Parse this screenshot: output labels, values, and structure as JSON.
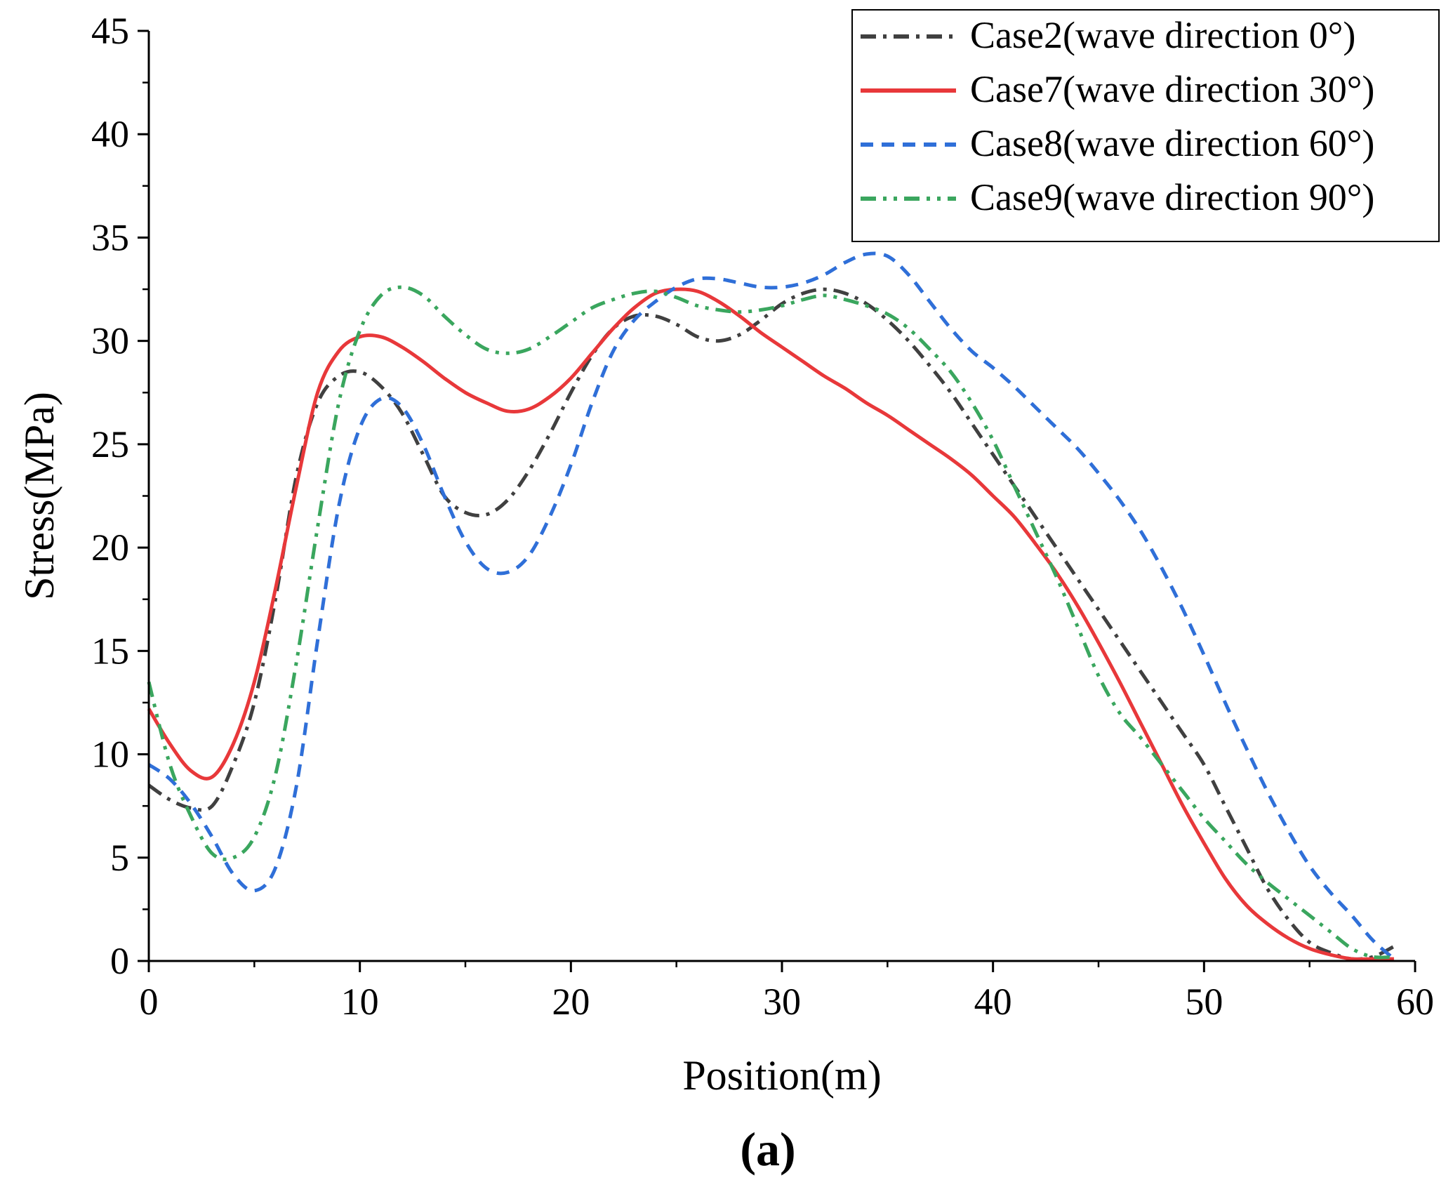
{
  "chart_data": {
    "type": "line",
    "title": "",
    "xlabel": "Position(m)",
    "ylabel": "Stress(MPa)",
    "panel_label": "(a)",
    "xlim": [
      0,
      60
    ],
    "ylim": [
      0,
      45
    ],
    "xticks": [
      0,
      10,
      20,
      30,
      40,
      50,
      60
    ],
    "yticks": [
      0,
      5,
      10,
      15,
      20,
      25,
      30,
      35,
      40,
      45
    ],
    "grid": false,
    "legend_position": "top-right",
    "series": [
      {
        "name": "Case2(wave direction 0°)",
        "color": "#404040",
        "dash": "dashdot",
        "x": [
          0,
          1,
          2,
          3,
          4,
          5,
          6,
          7,
          8,
          9,
          10,
          11,
          12,
          13,
          14,
          15,
          16,
          17,
          18,
          19,
          20,
          21,
          22,
          23,
          24,
          25,
          26,
          27,
          28,
          29,
          30,
          31,
          32,
          33,
          34,
          35,
          36,
          37,
          38,
          39,
          40,
          41,
          42,
          43,
          44,
          45,
          46,
          47,
          48,
          49,
          50,
          51,
          52,
          53,
          54,
          55,
          56,
          57,
          58,
          59
        ],
        "y": [
          8.5,
          7.8,
          7.4,
          7.5,
          9.5,
          12.5,
          17.5,
          23.5,
          27.0,
          28.3,
          28.5,
          27.8,
          26.5,
          24.5,
          22.5,
          21.7,
          21.6,
          22.3,
          23.7,
          25.5,
          27.5,
          29.3,
          30.6,
          31.2,
          31.2,
          30.8,
          30.2,
          30.0,
          30.3,
          31.0,
          31.8,
          32.3,
          32.5,
          32.3,
          31.8,
          31.0,
          30.0,
          28.8,
          27.5,
          26.0,
          24.5,
          23.0,
          21.5,
          20.0,
          18.5,
          17.0,
          15.5,
          14.0,
          12.5,
          11.0,
          9.5,
          7.5,
          5.5,
          3.5,
          2.0,
          0.9,
          0.4,
          0.1,
          0.2,
          0.7
        ]
      },
      {
        "name": "Case7(wave direction 30°)",
        "color": "#e8383a",
        "dash": "solid",
        "x": [
          0,
          1,
          2,
          3,
          4,
          5,
          6,
          7,
          8,
          9,
          10,
          11,
          12,
          13,
          14,
          15,
          16,
          17,
          18,
          19,
          20,
          21,
          22,
          23,
          24,
          25,
          26,
          27,
          28,
          29,
          30,
          31,
          32,
          33,
          34,
          35,
          36,
          37,
          38,
          39,
          40,
          41,
          42,
          43,
          44,
          45,
          46,
          47,
          48,
          49,
          50,
          51,
          52,
          53,
          54,
          55,
          56,
          57,
          58,
          59
        ],
        "y": [
          12.2,
          10.5,
          9.2,
          8.9,
          10.5,
          13.5,
          18.0,
          23.0,
          27.5,
          29.5,
          30.2,
          30.2,
          29.7,
          29.0,
          28.2,
          27.5,
          27.0,
          26.6,
          26.7,
          27.3,
          28.2,
          29.4,
          30.6,
          31.6,
          32.3,
          32.5,
          32.4,
          31.9,
          31.2,
          30.4,
          29.7,
          29.0,
          28.3,
          27.7,
          27.0,
          26.4,
          25.7,
          25.0,
          24.3,
          23.5,
          22.5,
          21.5,
          20.2,
          18.8,
          17.2,
          15.4,
          13.5,
          11.5,
          9.5,
          7.5,
          5.7,
          4.0,
          2.7,
          1.8,
          1.1,
          0.6,
          0.3,
          0.1,
          0.1,
          0.1
        ]
      },
      {
        "name": "Case8(wave direction 60°)",
        "color": "#2f6fd8",
        "dash": "dashed",
        "x": [
          0,
          1,
          2,
          3,
          4,
          5,
          6,
          7,
          8,
          9,
          10,
          11,
          12,
          13,
          14,
          15,
          16,
          17,
          18,
          19,
          20,
          21,
          22,
          23,
          24,
          25,
          26,
          27,
          28,
          29,
          30,
          31,
          32,
          33,
          34,
          35,
          36,
          37,
          38,
          39,
          40,
          41,
          42,
          43,
          44,
          45,
          46,
          47,
          48,
          49,
          50,
          51,
          52,
          53,
          54,
          55,
          56,
          57,
          58,
          59
        ],
        "y": [
          9.5,
          8.8,
          7.6,
          6.0,
          4.2,
          3.4,
          4.5,
          8.5,
          15.5,
          22.0,
          25.8,
          27.2,
          26.8,
          25.0,
          22.5,
          20.3,
          19.0,
          18.8,
          19.6,
          21.5,
          24.0,
          27.0,
          29.5,
          31.0,
          31.9,
          32.6,
          33.0,
          33.0,
          32.8,
          32.6,
          32.6,
          32.8,
          33.2,
          33.8,
          34.2,
          34.1,
          33.2,
          31.9,
          30.6,
          29.5,
          28.7,
          27.8,
          26.8,
          25.8,
          24.8,
          23.6,
          22.3,
          20.8,
          19.0,
          17.0,
          14.8,
          12.5,
          10.3,
          8.2,
          6.3,
          4.6,
          3.3,
          2.2,
          1.0,
          0.1
        ]
      },
      {
        "name": "Case9(wave direction 90°)",
        "color": "#3aa65e",
        "dash": "dashdotdot",
        "x": [
          0,
          1,
          2,
          3,
          4,
          5,
          6,
          7,
          8,
          9,
          10,
          11,
          12,
          13,
          14,
          15,
          16,
          17,
          18,
          19,
          20,
          21,
          22,
          23,
          24,
          25,
          26,
          27,
          28,
          29,
          30,
          31,
          32,
          33,
          34,
          35,
          36,
          37,
          38,
          39,
          40,
          41,
          42,
          43,
          44,
          45,
          46,
          47,
          48,
          49,
          50,
          51,
          52,
          53,
          54,
          55,
          56,
          57,
          58,
          59
        ],
        "y": [
          13.5,
          9.5,
          7.0,
          5.2,
          5.0,
          6.0,
          9.0,
          14.5,
          21.0,
          27.0,
          30.5,
          32.2,
          32.6,
          32.2,
          31.2,
          30.3,
          29.6,
          29.4,
          29.6,
          30.2,
          30.9,
          31.6,
          32.0,
          32.3,
          32.4,
          32.1,
          31.7,
          31.5,
          31.4,
          31.5,
          31.7,
          32.0,
          32.2,
          32.0,
          31.7,
          31.3,
          30.6,
          29.6,
          28.5,
          27.0,
          25.2,
          23.0,
          20.8,
          18.6,
          16.2,
          13.8,
          12.0,
          10.8,
          9.5,
          8.2,
          6.9,
          5.8,
          4.7,
          3.8,
          3.0,
          2.2,
          1.4,
          0.6,
          0.2,
          0.2
        ]
      }
    ]
  }
}
